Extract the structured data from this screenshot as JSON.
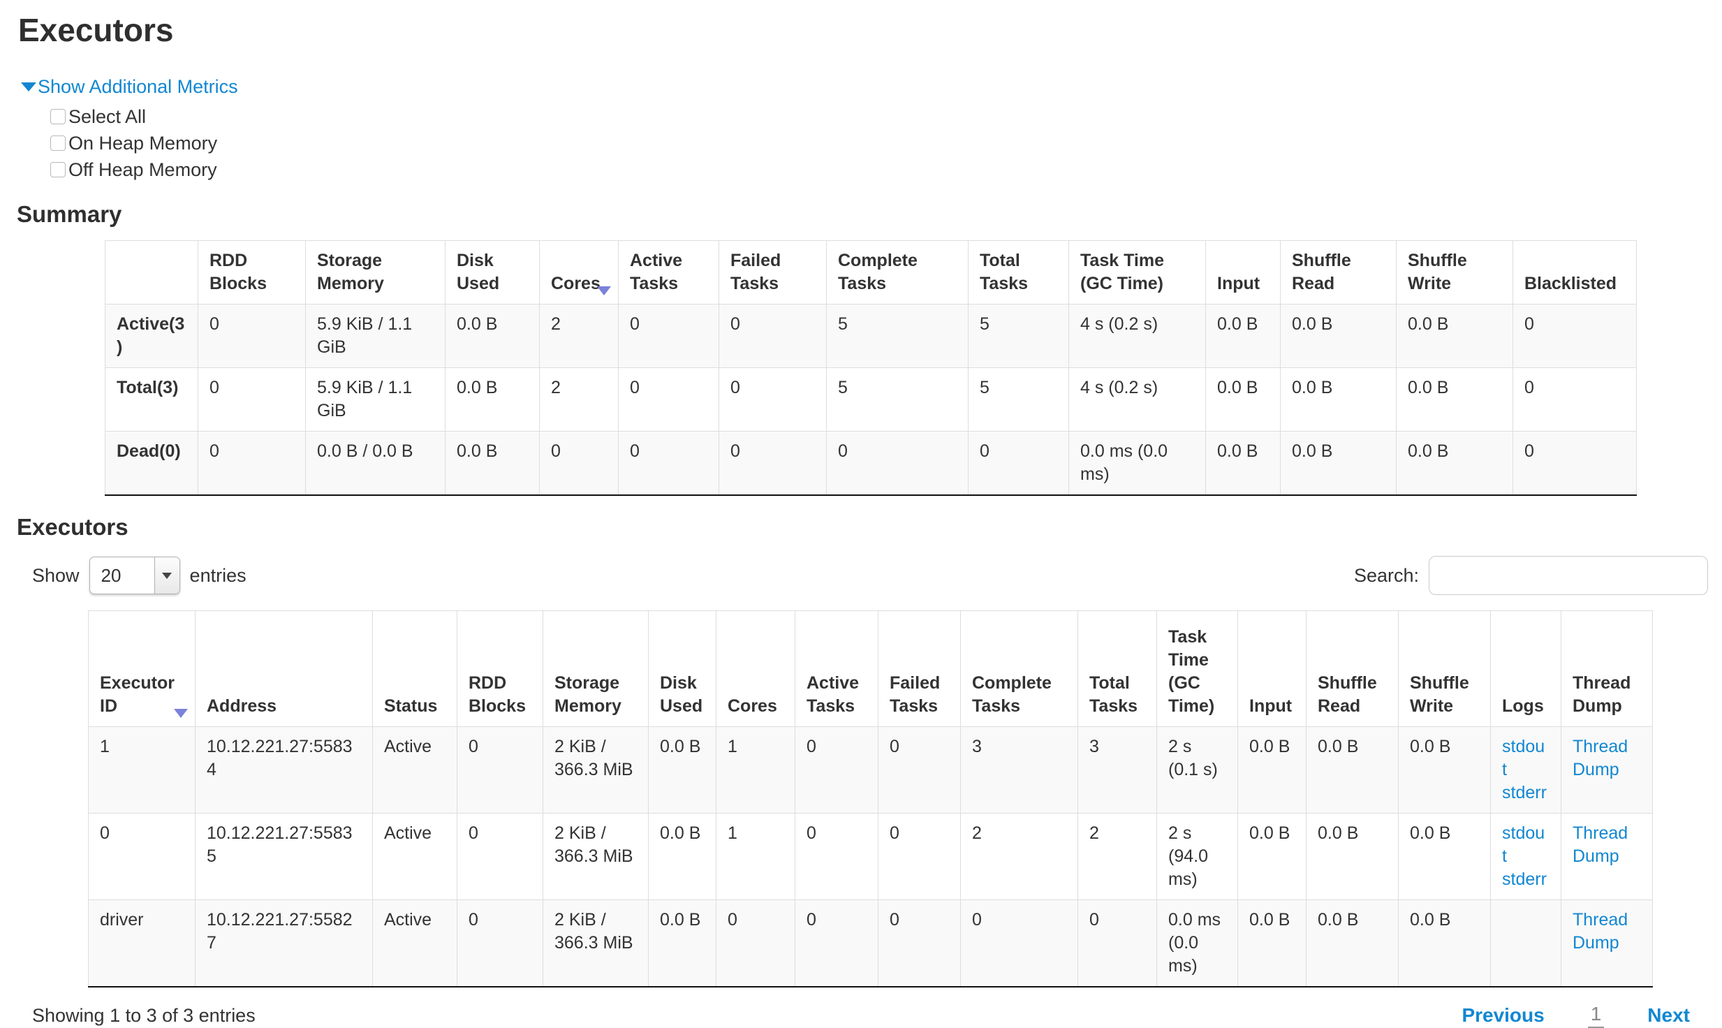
{
  "colors": {
    "link": "#1287d1",
    "sort_caret": "#7b82da",
    "stripe": "#f9f9f9",
    "border": "#dddddd",
    "text": "#333333"
  },
  "icons": {
    "caret_down_icon": "▼",
    "select_arrow_icon": "▼"
  },
  "page": {
    "title": "Executors"
  },
  "metrics": {
    "toggle_label": "Show Additional Metrics",
    "options": [
      {
        "label": "Select All",
        "checked": false
      },
      {
        "label": "On Heap Memory",
        "checked": false
      },
      {
        "label": "Off Heap Memory",
        "checked": false
      }
    ]
  },
  "summary": {
    "heading": "Summary",
    "columns": [
      "",
      "RDD Blocks",
      "Storage Memory",
      "Disk Used",
      "Cores",
      "Active Tasks",
      "Failed Tasks",
      "Complete Tasks",
      "Total Tasks",
      "Task Time (GC Time)",
      "Input",
      "Shuffle Read",
      "Shuffle Write",
      "Blacklisted"
    ],
    "sorted_column_index": 4,
    "rows": [
      {
        "label": "Active(3)",
        "values": [
          "0",
          "5.9 KiB / 1.1 GiB",
          "0.0 B",
          "2",
          "0",
          "0",
          "5",
          "5",
          "4 s (0.2 s)",
          "0.0 B",
          "0.0 B",
          "0.0 B",
          "0"
        ]
      },
      {
        "label": "Total(3)",
        "values": [
          "0",
          "5.9 KiB / 1.1 GiB",
          "0.0 B",
          "2",
          "0",
          "0",
          "5",
          "5",
          "4 s (0.2 s)",
          "0.0 B",
          "0.0 B",
          "0.0 B",
          "0"
        ]
      },
      {
        "label": "Dead(0)",
        "values": [
          "0",
          "0.0 B / 0.0 B",
          "0.0 B",
          "0",
          "0",
          "0",
          "0",
          "0",
          "0.0 ms (0.0 ms)",
          "0.0 B",
          "0.0 B",
          "0.0 B",
          "0"
        ]
      }
    ]
  },
  "executors": {
    "heading": "Executors",
    "controls": {
      "show_label": "Show",
      "page_size": "20",
      "entries_label": "entries",
      "search_label": "Search:",
      "search_value": ""
    },
    "columns": [
      "Executor ID",
      "Address",
      "Status",
      "RDD Blocks",
      "Storage Memory",
      "Disk Used",
      "Cores",
      "Active Tasks",
      "Failed Tasks",
      "Complete Tasks",
      "Total Tasks",
      "Task Time (GC Time)",
      "Input",
      "Shuffle Read",
      "Shuffle Write",
      "Logs",
      "Thread Dump"
    ],
    "sorted_column_index": 0,
    "rows": [
      {
        "cells": [
          "1",
          "10.12.221.27:55834",
          "Active",
          "0",
          "2 KiB / 366.3 MiB",
          "0.0 B",
          "1",
          "0",
          "0",
          "3",
          "3",
          "2 s (0.1 s)",
          "0.0 B",
          "0.0 B",
          "0.0 B"
        ],
        "logs": [
          "stdout",
          "stderr"
        ],
        "thread_dump": "Thread Dump"
      },
      {
        "cells": [
          "0",
          "10.12.221.27:55835",
          "Active",
          "0",
          "2 KiB / 366.3 MiB",
          "0.0 B",
          "1",
          "0",
          "0",
          "2",
          "2",
          "2 s (94.0 ms)",
          "0.0 B",
          "0.0 B",
          "0.0 B"
        ],
        "logs": [
          "stdout",
          "stderr"
        ],
        "thread_dump": "Thread Dump"
      },
      {
        "cells": [
          "driver",
          "10.12.221.27:55827",
          "Active",
          "0",
          "2 KiB / 366.3 MiB",
          "0.0 B",
          "0",
          "0",
          "0",
          "0",
          "0",
          "0.0 ms (0.0 ms)",
          "0.0 B",
          "0.0 B",
          "0.0 B"
        ],
        "logs": [],
        "thread_dump": "Thread Dump"
      }
    ],
    "footer": {
      "status": "Showing 1 to 3 of 3 entries",
      "previous_label": "Previous",
      "current_page": "1",
      "next_label": "Next"
    }
  }
}
